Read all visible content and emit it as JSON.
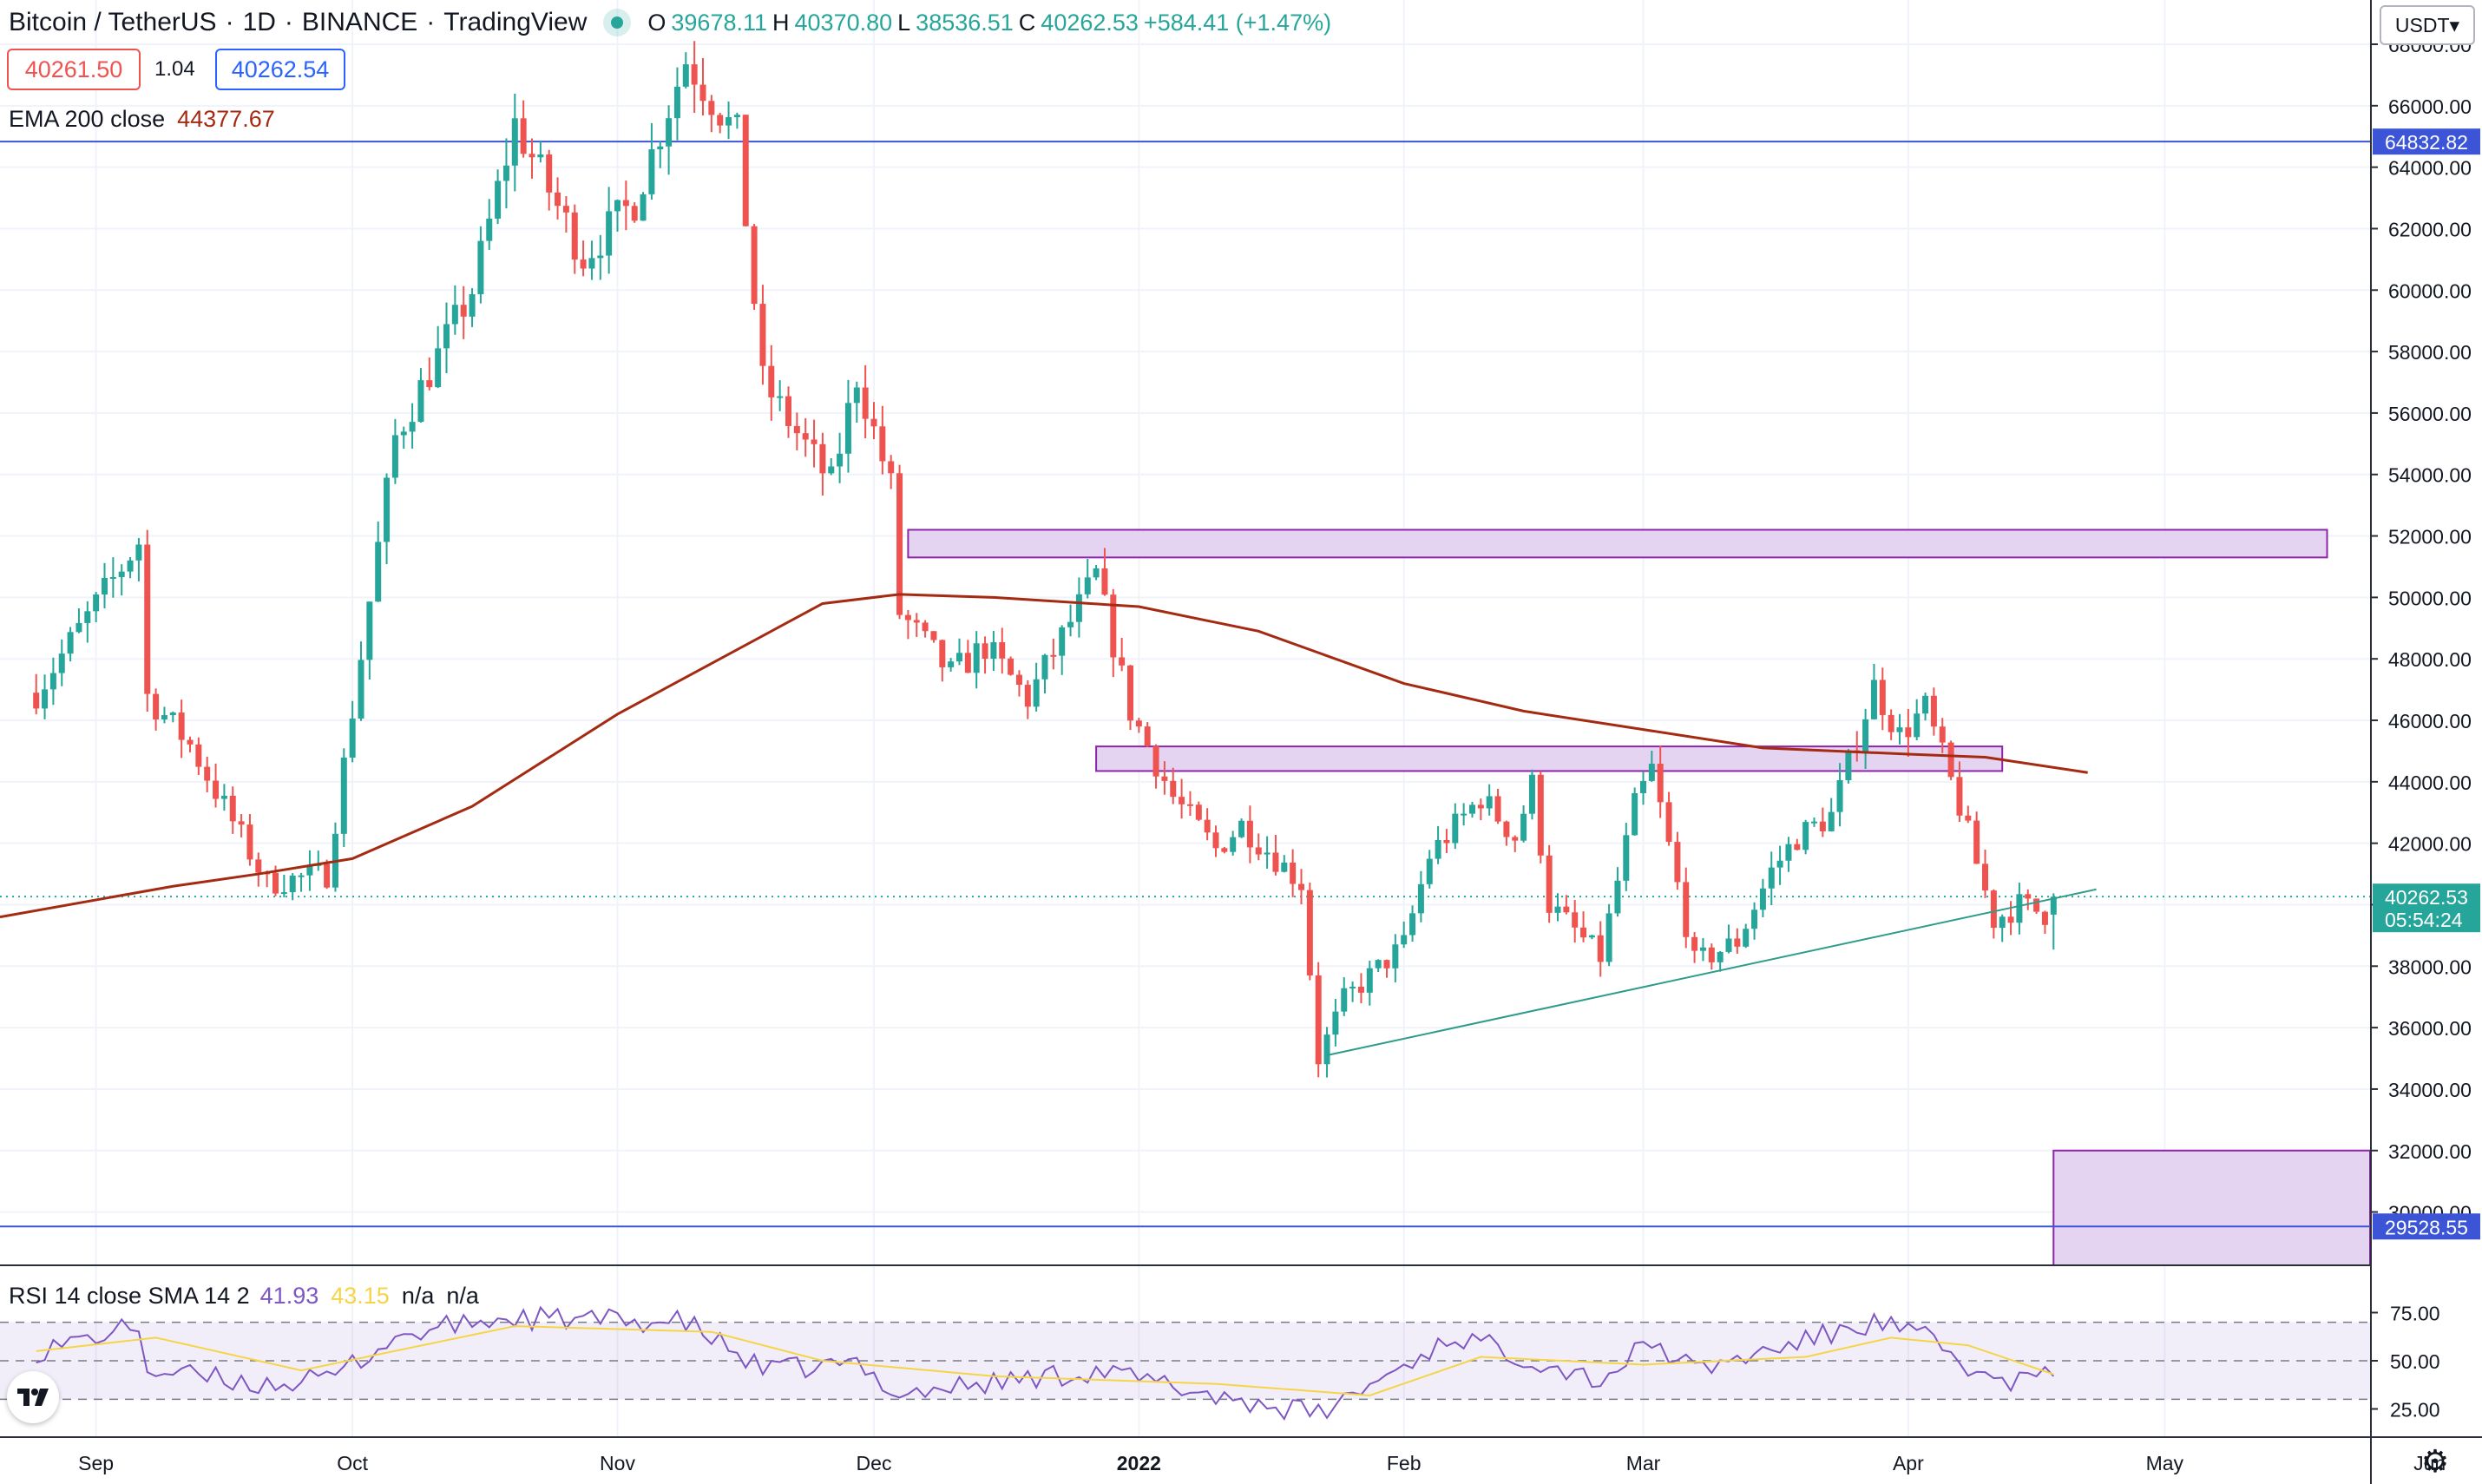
{
  "header": {
    "symbol": "Bitcoin / TetherUS",
    "interval": "1D",
    "exchange": "BINANCE",
    "platform": "TradingView",
    "ohlc": {
      "open_label": "O",
      "open": "39678.11",
      "high_label": "H",
      "high": "40370.80",
      "low_label": "L",
      "low": "38536.51",
      "close_label": "C",
      "close": "40262.53",
      "change": "+584.41 (+1.47%)"
    }
  },
  "order": {
    "bid": "40261.50",
    "spread": "1.04",
    "ask": "40262.54"
  },
  "ema_legend": {
    "label": "EMA 200 close",
    "value": "44377.67"
  },
  "rsi_legend": {
    "label": "RSI 14 close SMA 14 2",
    "rsi": "41.93",
    "sma": "43.15",
    "na1": "n/a",
    "na2": "n/a"
  },
  "currency": "USDT",
  "logo_text": "17",
  "colors": {
    "up": "#26a69a",
    "down": "#ef5350",
    "ema": "#a52a12",
    "hline": "#3c54d6",
    "zone_fill": "#e1cdee",
    "zone_stroke": "#8e24aa",
    "rsi": "#7e57c2",
    "rsi_sma": "#f5d547"
  },
  "chart_data": {
    "type": "candlestick",
    "price_axis": {
      "ticks": [
        "68000.00",
        "66000.00",
        "64000.00",
        "62000.00",
        "60000.00",
        "58000.00",
        "56000.00",
        "54000.00",
        "52000.00",
        "50000.00",
        "48000.00",
        "46000.00",
        "44000.00",
        "42000.00",
        "40000.00",
        "38000.00",
        "36000.00",
        "34000.00",
        "32000.00",
        "30000.00"
      ],
      "ylim": [
        28000,
        69000
      ]
    },
    "price_labels": [
      {
        "value": "64832.82",
        "color": "#3c54d6"
      },
      {
        "value": "40262.53",
        "color": "#26a69a",
        "sub": "05:54:24"
      },
      {
        "value": "29528.55",
        "color": "#3c54d6"
      }
    ],
    "time_axis": {
      "labels": [
        "Sep",
        "Oct",
        "Nov",
        "Dec",
        "2022",
        "Feb",
        "Mar",
        "Apr",
        "May",
        "Jun"
      ],
      "bold": [
        "2022"
      ]
    },
    "rsi_axis": {
      "ticks": [
        "75.00",
        "50.00",
        "25.00"
      ],
      "band": [
        30,
        70
      ]
    },
    "horizontal_lines": [
      64832.82,
      29528.55
    ],
    "zones": [
      {
        "from": "2021-12-05",
        "to": "2022-05-20",
        "low": 51300,
        "high": 52200
      },
      {
        "from": "2021-12-27",
        "to": "2022-04-12",
        "low": 44350,
        "high": 45150
      },
      {
        "from": "2022-04-18",
        "to": "2022-06-10",
        "low": 28000,
        "high": 32000
      }
    ],
    "trendline": {
      "from": [
        "2022-01-23",
        35100
      ],
      "to": [
        "2022-04-23",
        40500
      ]
    },
    "ema_200": [
      [
        "2021-08-25",
        39600
      ],
      [
        "2021-09-10",
        40600
      ],
      [
        "2021-09-20",
        41000
      ],
      [
        "2021-10-01",
        41500
      ],
      [
        "2021-10-15",
        43200
      ],
      [
        "2021-11-01",
        46200
      ],
      [
        "2021-11-15",
        48300
      ],
      [
        "2021-11-25",
        49800
      ],
      [
        "2021-12-04",
        50100
      ],
      [
        "2021-12-15",
        50000
      ],
      [
        "2022-01-01",
        49700
      ],
      [
        "2022-01-15",
        48900
      ],
      [
        "2022-02-01",
        47200
      ],
      [
        "2022-02-15",
        46300
      ],
      [
        "2022-03-01",
        45700
      ],
      [
        "2022-03-15",
        45100
      ],
      [
        "2022-04-01",
        44900
      ],
      [
        "2022-04-10",
        44800
      ],
      [
        "2022-04-22",
        44300
      ]
    ],
    "anchors": [
      [
        "2021-08-25",
        46900
      ],
      [
        "2021-09-06",
        51800
      ],
      [
        "2021-09-07",
        46800
      ],
      [
        "2021-09-12",
        45200
      ],
      [
        "2021-09-21",
        40700
      ],
      [
        "2021-09-28",
        41000
      ],
      [
        "2021-10-06",
        55200
      ],
      [
        "2021-10-15",
        60000
      ],
      [
        "2021-10-20",
        65400
      ],
      [
        "2021-10-28",
        61100
      ],
      [
        "2021-11-03",
        62900
      ],
      [
        "2021-11-09",
        67500
      ],
      [
        "2021-11-15",
        65000
      ],
      [
        "2021-11-18",
        57000
      ],
      [
        "2021-11-26",
        53700
      ],
      [
        "2021-11-29",
        57200
      ],
      [
        "2021-12-03",
        53600
      ],
      [
        "2021-12-04",
        49500
      ],
      [
        "2021-12-10",
        47500
      ],
      [
        "2021-12-14",
        48400
      ],
      [
        "2021-12-19",
        46700
      ],
      [
        "2021-12-27",
        50700
      ],
      [
        "2021-12-31",
        46300
      ],
      [
        "2022-01-05",
        43500
      ],
      [
        "2022-01-10",
        41800
      ],
      [
        "2022-01-13",
        42600
      ],
      [
        "2022-01-20",
        40700
      ],
      [
        "2022-01-22",
        35000
      ],
      [
        "2022-01-25",
        36900
      ],
      [
        "2022-02-01",
        38700
      ],
      [
        "2022-02-04",
        41600
      ],
      [
        "2022-02-10",
        43500
      ],
      [
        "2022-02-14",
        42200
      ],
      [
        "2022-02-16",
        43900
      ],
      [
        "2022-02-18",
        40000
      ],
      [
        "2022-02-24",
        38300
      ],
      [
        "2022-02-28",
        43200
      ],
      [
        "2022-03-02",
        44400
      ],
      [
        "2022-03-07",
        38100
      ],
      [
        "2022-03-12",
        38800
      ],
      [
        "2022-03-16",
        41100
      ],
      [
        "2022-03-19",
        42200
      ],
      [
        "2022-03-23",
        42900
      ],
      [
        "2022-03-28",
        47100
      ],
      [
        "2022-03-31",
        45500
      ],
      [
        "2022-04-03",
        46400
      ],
      [
        "2022-04-07",
        43200
      ],
      [
        "2022-04-11",
        39500
      ],
      [
        "2022-04-14",
        40000
      ],
      [
        "2022-04-17",
        39700
      ],
      [
        "2022-04-18",
        40262.53
      ]
    ],
    "rsi_anchors": [
      [
        "2021-08-25",
        55
      ],
      [
        "2021-09-06",
        68
      ],
      [
        "2021-09-07",
        45
      ],
      [
        "2021-09-20",
        38
      ],
      [
        "2021-09-28",
        40
      ],
      [
        "2021-10-06",
        62
      ],
      [
        "2021-10-15",
        70
      ],
      [
        "2021-10-20",
        72
      ],
      [
        "2021-11-09",
        70
      ],
      [
        "2021-11-18",
        45
      ],
      [
        "2021-11-29",
        48
      ],
      [
        "2021-12-04",
        33
      ],
      [
        "2021-12-27",
        45
      ],
      [
        "2022-01-10",
        32
      ],
      [
        "2022-01-22",
        22
      ],
      [
        "2022-02-07",
        63
      ],
      [
        "2022-02-24",
        40
      ],
      [
        "2022-03-02",
        60
      ],
      [
        "2022-03-07",
        45
      ],
      [
        "2022-03-28",
        70
      ],
      [
        "2022-04-03",
        62
      ],
      [
        "2022-04-11",
        38
      ],
      [
        "2022-04-18",
        42
      ]
    ],
    "rsi_sma_anchors": [
      [
        "2021-08-25",
        55
      ],
      [
        "2021-09-08",
        62
      ],
      [
        "2021-09-25",
        45
      ],
      [
        "2021-10-20",
        68
      ],
      [
        "2021-11-12",
        65
      ],
      [
        "2021-11-25",
        50
      ],
      [
        "2021-12-15",
        42
      ],
      [
        "2022-01-10",
        38
      ],
      [
        "2022-01-28",
        32
      ],
      [
        "2022-02-10",
        52
      ],
      [
        "2022-03-01",
        48
      ],
      [
        "2022-03-20",
        52
      ],
      [
        "2022-03-30",
        62
      ],
      [
        "2022-04-08",
        58
      ],
      [
        "2022-04-18",
        43
      ]
    ]
  }
}
